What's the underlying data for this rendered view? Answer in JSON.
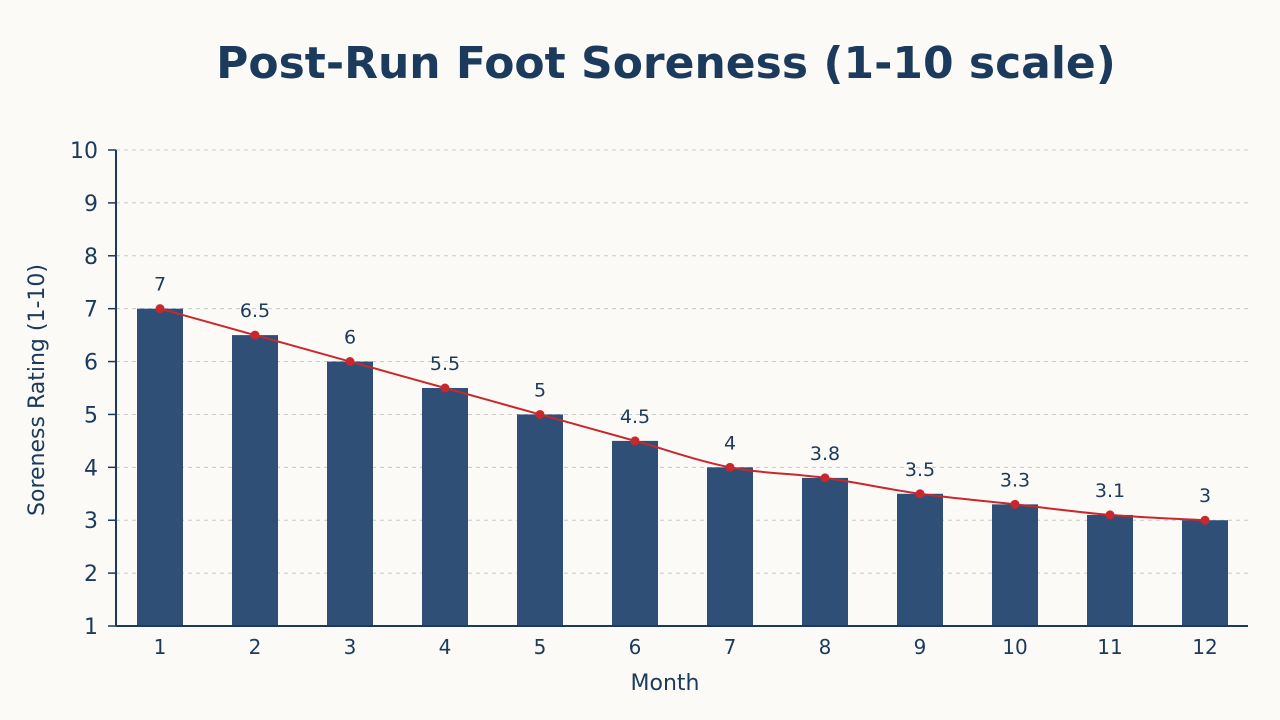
{
  "chart_data": {
    "type": "bar",
    "title": "Post-Run Foot Soreness (1-10 scale)",
    "xlabel": "Month",
    "ylabel": "Soreness Rating (1-10)",
    "categories": [
      "1",
      "2",
      "3",
      "4",
      "5",
      "6",
      "7",
      "8",
      "9",
      "10",
      "11",
      "12"
    ],
    "series": [
      {
        "type": "bar",
        "values": [
          7,
          6.5,
          6,
          5.5,
          5,
          4.5,
          4,
          3.8,
          3.5,
          3.3,
          3.1,
          3
        ]
      },
      {
        "type": "line",
        "values": [
          7,
          6.5,
          6,
          5.5,
          5,
          4.5,
          4,
          3.8,
          3.5,
          3.3,
          3.1,
          3
        ]
      }
    ],
    "data_labels": [
      "7",
      "6.5",
      "6",
      "5.5",
      "5",
      "4.5",
      "4",
      "3.8",
      "3.5",
      "3.3",
      "3.1",
      "3"
    ],
    "ylim": [
      1,
      10
    ],
    "yticks": [
      1,
      2,
      3,
      4,
      5,
      6,
      7,
      8,
      9,
      10
    ],
    "grid": true,
    "colors": {
      "bar": "#2f4f77",
      "line": "#c8282d",
      "text": "#1b3a5c",
      "background": "#fbfaf6"
    }
  }
}
